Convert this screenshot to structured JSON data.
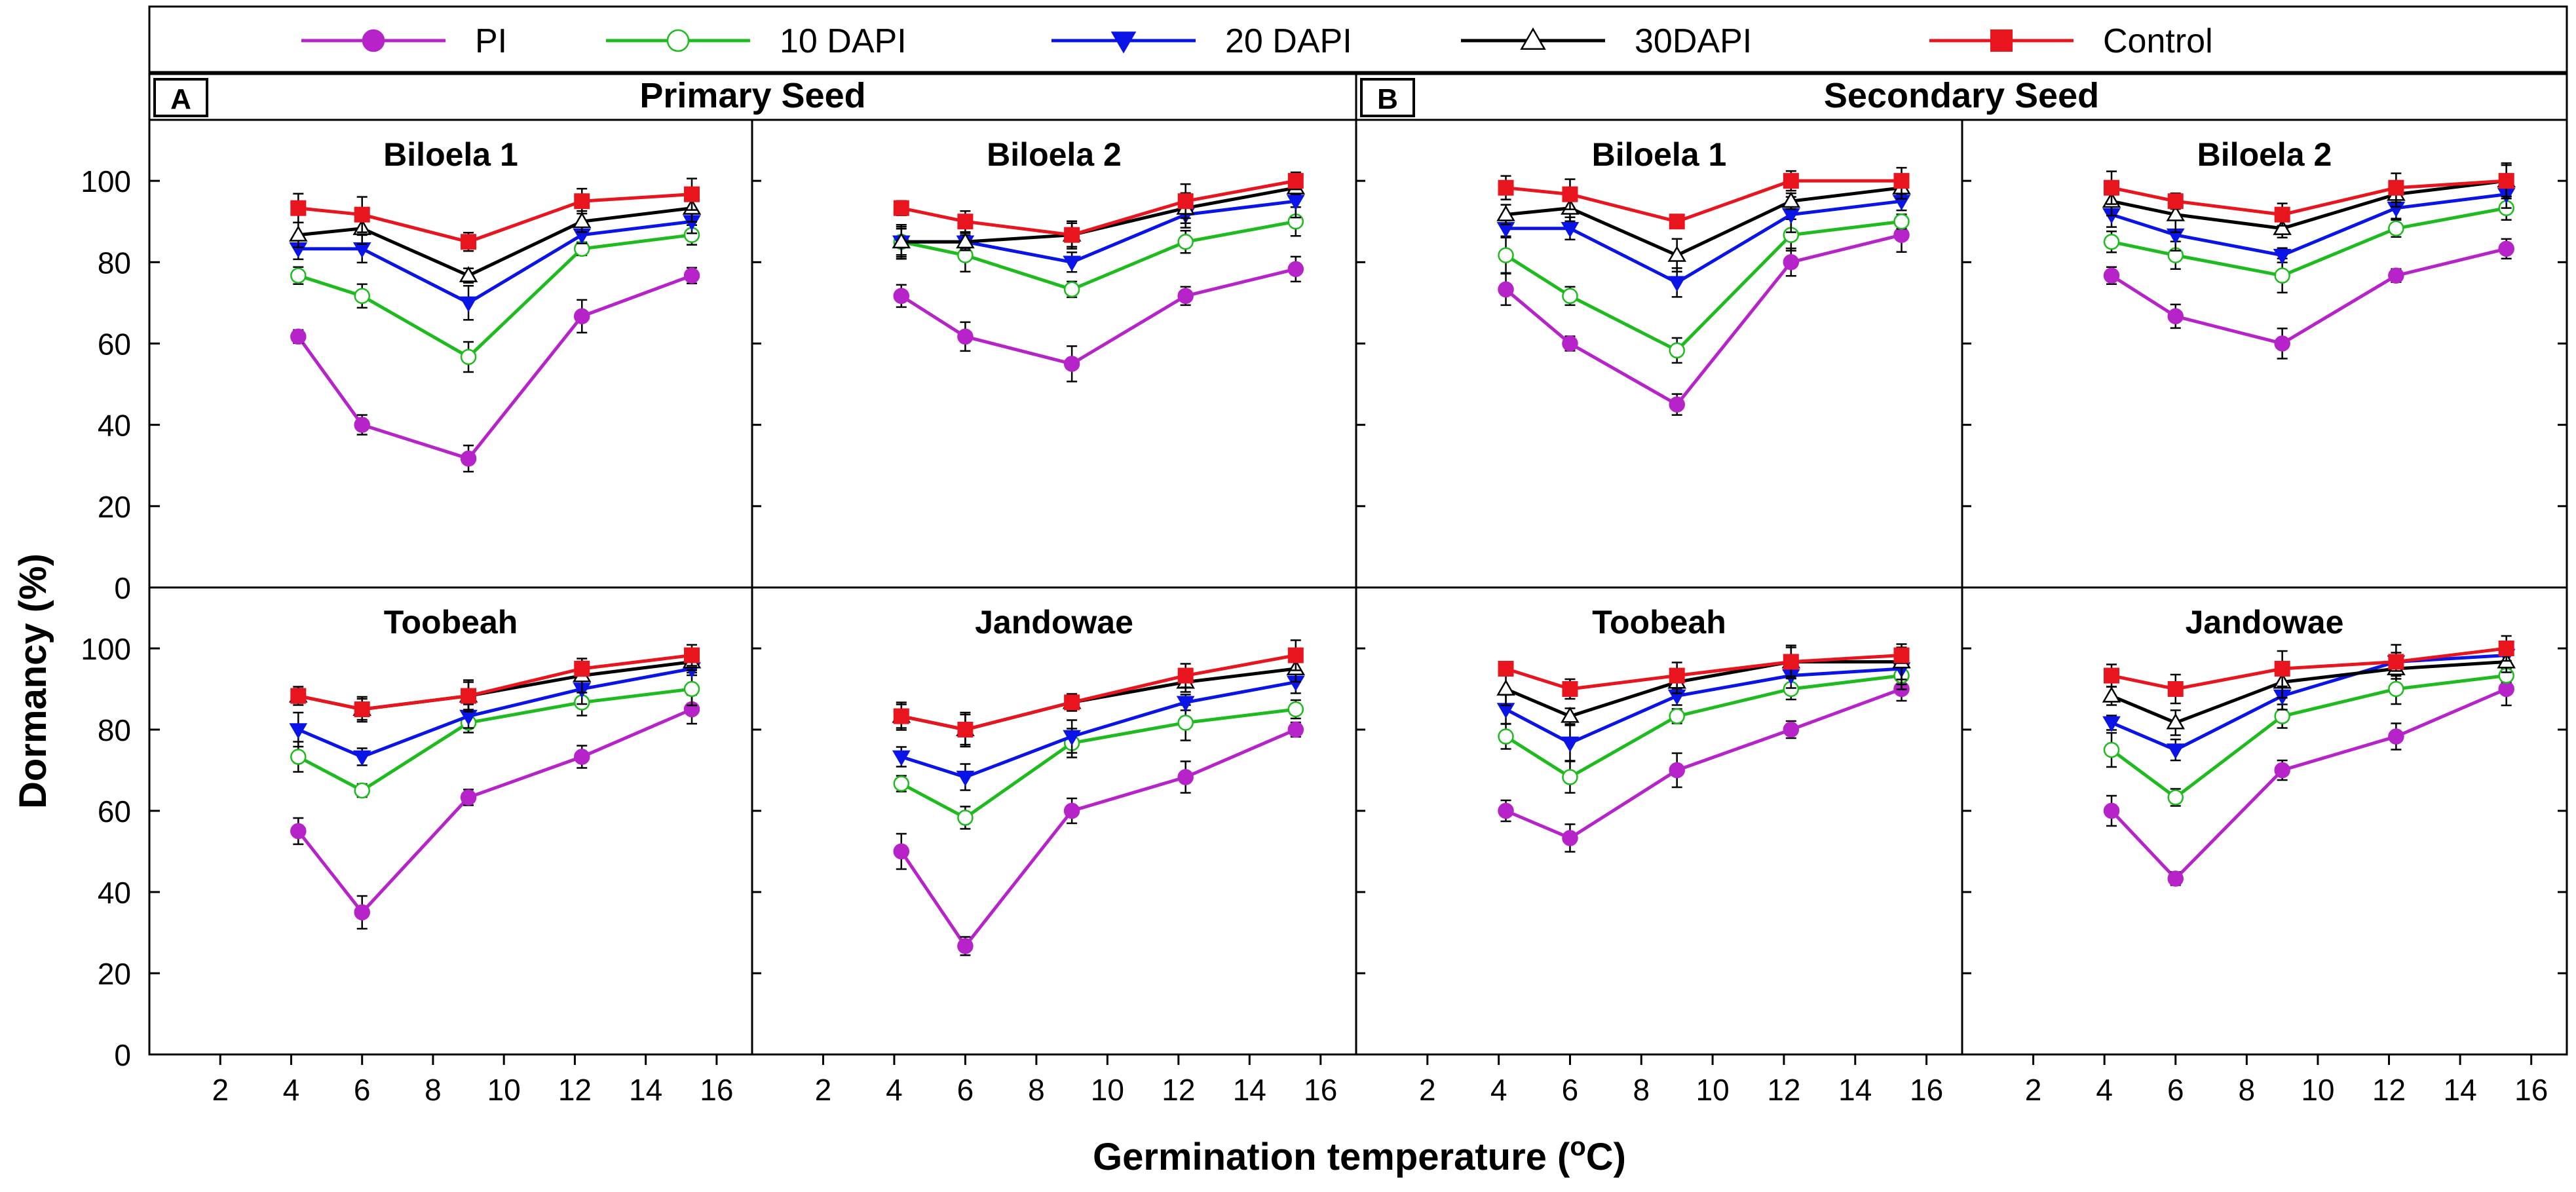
{
  "chart_data": {
    "type": "line",
    "ylabel": "Dormancy (%)",
    "xlabel": "Germination temperature (",
    "xlabel_unit_o": "o",
    "xlabel_unit_c": "C)",
    "xlim": [
      0,
      17
    ],
    "ylim": [
      0,
      115
    ],
    "x_ticks": [
      "2",
      "4",
      "6",
      "8",
      "10",
      "12",
      "14",
      "16"
    ],
    "y_ticks": [
      "0",
      "20",
      "40",
      "60",
      "80",
      "100"
    ],
    "x": [
      4.2,
      6.0,
      9.0,
      12.2,
      15.3
    ],
    "legend": [
      {
        "name": "PI",
        "color": "#b623c8",
        "marker": "circle-filled"
      },
      {
        "name": "10 DAPI",
        "color": "#1dbb1d",
        "marker": "circle-open"
      },
      {
        "name": "20 DAPI",
        "color": "#0a14e6",
        "marker": "triangle-down-filled"
      },
      {
        "name": "30DAPI",
        "color": "#000000",
        "marker": "triangle-up-open"
      },
      {
        "name": "Control",
        "color": "#e8141e",
        "marker": "square-filled"
      }
    ],
    "groups": [
      {
        "letter": "A",
        "title": "Primary Seed"
      },
      {
        "letter": "B",
        "title": "Secondary Seed"
      }
    ],
    "panels": [
      {
        "title": "Biloela 1",
        "group": "A",
        "series": {
          "PI": [
            61.7,
            40,
            31.7,
            66.7,
            76.7
          ],
          "10 DAPI": [
            76.7,
            71.7,
            56.7,
            83.3,
            86.7
          ],
          "20 DAPI": [
            83.3,
            83.3,
            70,
            86.7,
            90
          ],
          "30DAPI": [
            86.7,
            88.3,
            76.7,
            90,
            93.3
          ],
          "Control": [
            93.3,
            91.7,
            85,
            95,
            96.7
          ]
        }
      },
      {
        "title": "Biloela 2",
        "group": "A",
        "series": {
          "PI": [
            71.7,
            61.7,
            55,
            71.7,
            78.3
          ],
          "10 DAPI": [
            85,
            81.7,
            73.3,
            85,
            90
          ],
          "20 DAPI": [
            85,
            85,
            80,
            91.7,
            95
          ],
          "30DAPI": [
            85,
            85,
            86.7,
            93.3,
            98.3
          ],
          "Control": [
            93.3,
            90,
            86.7,
            95,
            100
          ]
        }
      },
      {
        "title": "Biloela 1",
        "group": "B",
        "series": {
          "PI": [
            73.3,
            60,
            45,
            80,
            86.7
          ],
          "10 DAPI": [
            81.7,
            71.7,
            58.3,
            86.7,
            90
          ],
          "20 DAPI": [
            88.3,
            88.3,
            75,
            91.7,
            95
          ],
          "30DAPI": [
            91.7,
            93.3,
            81.7,
            95,
            98.3
          ],
          "Control": [
            98.3,
            96.7,
            90,
            100,
            100
          ]
        }
      },
      {
        "title": "Biloela 2",
        "group": "B",
        "series": {
          "PI": [
            76.7,
            66.7,
            60,
            76.7,
            83.3
          ],
          "10 DAPI": [
            85,
            81.7,
            76.7,
            88.3,
            93.3
          ],
          "20 DAPI": [
            91.7,
            86.7,
            81.7,
            93.3,
            96.7
          ],
          "30DAPI": [
            95,
            91.7,
            88.3,
            96.7,
            100
          ],
          "Control": [
            98.3,
            95,
            91.7,
            98.3,
            100
          ]
        }
      },
      {
        "title": "Toobeah",
        "group": "A",
        "series": {
          "PI": [
            55,
            35,
            63.3,
            73.3,
            85
          ],
          "10 DAPI": [
            73.3,
            65,
            81.7,
            86.7,
            90
          ],
          "20 DAPI": [
            80,
            73.3,
            83.3,
            90,
            95
          ],
          "30DAPI": [
            88.3,
            85,
            88.3,
            93.3,
            96.7
          ],
          "Control": [
            88.3,
            85,
            88.3,
            95,
            98.3
          ]
        }
      },
      {
        "title": "Jandowae",
        "group": "A",
        "series": {
          "PI": [
            50,
            26.7,
            60,
            68.3,
            80
          ],
          "10 DAPI": [
            66.7,
            58.3,
            76.7,
            81.7,
            85
          ],
          "20 DAPI": [
            73.3,
            68.3,
            78.3,
            86.7,
            91.7
          ],
          "30DAPI": [
            83.3,
            80,
            86.7,
            91.7,
            95
          ],
          "Control": [
            83.3,
            80,
            86.7,
            93.3,
            98.3
          ]
        }
      },
      {
        "title": "Toobeah",
        "group": "B",
        "series": {
          "PI": [
            60,
            53.3,
            70,
            80,
            90
          ],
          "10 DAPI": [
            78.3,
            68.3,
            83.3,
            90,
            93.3
          ],
          "20 DAPI": [
            85,
            76.7,
            88.3,
            93.3,
            95
          ],
          "30DAPI": [
            90,
            83.3,
            91.7,
            96.7,
            96.7
          ],
          "Control": [
            95,
            90,
            93.3,
            96.7,
            98.3
          ]
        }
      },
      {
        "title": "Jandowae",
        "group": "B",
        "series": {
          "PI": [
            60,
            43.3,
            70,
            78.3,
            90
          ],
          "10 DAPI": [
            75,
            63.3,
            83.3,
            90,
            93.3
          ],
          "20 DAPI": [
            81.7,
            75,
            88.3,
            96.7,
            98.3
          ],
          "30DAPI": [
            88.3,
            81.7,
            91.7,
            95,
            96.7
          ],
          "Control": [
            93.3,
            90,
            95,
            96.7,
            100
          ]
        }
      }
    ]
  }
}
